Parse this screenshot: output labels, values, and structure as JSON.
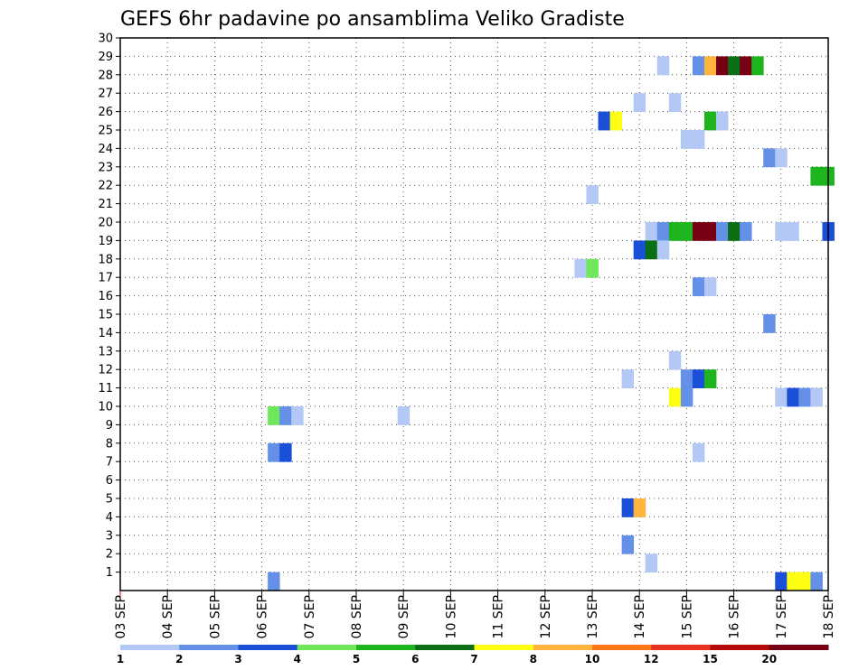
{
  "chart_data": {
    "type": "heatmap",
    "title": "GEFS 6hr padavine po ansamblima Veliko Gradiste",
    "x_ticks": [
      "03 SEP",
      "04 SEP",
      "05 SEP",
      "06 SEP",
      "07 SEP",
      "08 SEP",
      "09 SEP",
      "10 SEP",
      "11 SEP",
      "12 SEP",
      "13 SEP",
      "14 SEP",
      "15 SEP",
      "16 SEP",
      "17 SEP",
      "18 SEP"
    ],
    "x_range_days": [
      3,
      18
    ],
    "y_ticks": [
      1,
      2,
      3,
      4,
      5,
      6,
      7,
      8,
      9,
      10,
      11,
      12,
      13,
      14,
      15,
      16,
      17,
      18,
      19,
      20,
      21,
      22,
      23,
      24,
      25,
      26,
      27,
      28,
      29,
      30
    ],
    "y_range": [
      0,
      30
    ],
    "grid": true,
    "legend": {
      "position": "bottom",
      "labels": [
        "1",
        "2",
        "3",
        "4",
        "5",
        "6",
        "7",
        "8",
        "10",
        "12",
        "15",
        "20"
      ],
      "colors": [
        "#b4c8f5",
        "#6490e8",
        "#1a4fd8",
        "#6ee85a",
        "#1eb41e",
        "#0a6e14",
        "#ffff14",
        "#ffb43c",
        "#ff7814",
        "#e6321e",
        "#b40a0a",
        "#780014"
      ]
    },
    "cells": [
      {
        "member": 28,
        "x": 14.5,
        "v": 1
      },
      {
        "member": 28,
        "x": 15.25,
        "v": 2
      },
      {
        "member": 28,
        "x": 15.5,
        "v": 8
      },
      {
        "member": 28,
        "x": 15.75,
        "v": 12
      },
      {
        "member": 28,
        "x": 16.0,
        "v": 6
      },
      {
        "member": 28,
        "x": 16.25,
        "v": 12
      },
      {
        "member": 28,
        "x": 16.5,
        "v": 5
      },
      {
        "member": 26,
        "x": 14.0,
        "v": 1
      },
      {
        "member": 26,
        "x": 14.75,
        "v": 1
      },
      {
        "member": 25,
        "x": 13.25,
        "v": 3
      },
      {
        "member": 25,
        "x": 13.5,
        "v": 7
      },
      {
        "member": 25,
        "x": 15.5,
        "v": 5
      },
      {
        "member": 25,
        "x": 15.75,
        "v": 1
      },
      {
        "member": 24,
        "x": 15.0,
        "v": 1
      },
      {
        "member": 24,
        "x": 15.25,
        "v": 1
      },
      {
        "member": 23,
        "x": 16.75,
        "v": 2
      },
      {
        "member": 23,
        "x": 17.0,
        "v": 1
      },
      {
        "member": 22,
        "x": 17.75,
        "v": 5
      },
      {
        "member": 22,
        "x": 18.0,
        "v": 5
      },
      {
        "member": 21,
        "x": 13.0,
        "v": 1
      },
      {
        "member": 19,
        "x": 14.25,
        "v": 1
      },
      {
        "member": 19,
        "x": 14.5,
        "v": 2
      },
      {
        "member": 19,
        "x": 14.75,
        "v": 5
      },
      {
        "member": 19,
        "x": 15.0,
        "v": 5
      },
      {
        "member": 19,
        "x": 15.25,
        "v": 15
      },
      {
        "member": 19,
        "x": 15.5,
        "v": 15
      },
      {
        "member": 19,
        "x": 15.75,
        "v": 2
      },
      {
        "member": 19,
        "x": 16.0,
        "v": 6
      },
      {
        "member": 19,
        "x": 16.25,
        "v": 2
      },
      {
        "member": 19,
        "x": 17.0,
        "v": 1
      },
      {
        "member": 19,
        "x": 17.25,
        "v": 1
      },
      {
        "member": 19,
        "x": 18.0,
        "v": 3
      },
      {
        "member": 18,
        "x": 14.0,
        "v": 3
      },
      {
        "member": 18,
        "x": 14.25,
        "v": 6
      },
      {
        "member": 18,
        "x": 14.5,
        "v": 1
      },
      {
        "member": 17,
        "x": 12.75,
        "v": 1
      },
      {
        "member": 17,
        "x": 13.0,
        "v": 4
      },
      {
        "member": 16,
        "x": 15.25,
        "v": 2
      },
      {
        "member": 16,
        "x": 15.5,
        "v": 1
      },
      {
        "member": 14,
        "x": 16.75,
        "v": 2
      },
      {
        "member": 12,
        "x": 14.75,
        "v": 1
      },
      {
        "member": 11,
        "x": 13.75,
        "v": 1
      },
      {
        "member": 11,
        "x": 15.0,
        "v": 2
      },
      {
        "member": 11,
        "x": 15.25,
        "v": 3
      },
      {
        "member": 11,
        "x": 15.5,
        "v": 5
      },
      {
        "member": 10,
        "x": 14.75,
        "v": 7
      },
      {
        "member": 10,
        "x": 15.0,
        "v": 2
      },
      {
        "member": 10,
        "x": 17.0,
        "v": 1
      },
      {
        "member": 10,
        "x": 17.25,
        "v": 3
      },
      {
        "member": 10,
        "x": 17.5,
        "v": 2
      },
      {
        "member": 10,
        "x": 17.75,
        "v": 1
      },
      {
        "member": 9,
        "x": 6.25,
        "v": 4
      },
      {
        "member": 9,
        "x": 6.5,
        "v": 2
      },
      {
        "member": 9,
        "x": 6.75,
        "v": 1
      },
      {
        "member": 9,
        "x": 9.0,
        "v": 1
      },
      {
        "member": 7,
        "x": 6.25,
        "v": 2
      },
      {
        "member": 7,
        "x": 6.5,
        "v": 3
      },
      {
        "member": 7,
        "x": 15.25,
        "v": 1
      },
      {
        "member": 4,
        "x": 13.75,
        "v": 3
      },
      {
        "member": 4,
        "x": 14.0,
        "v": 8
      },
      {
        "member": 2,
        "x": 13.75,
        "v": 2
      },
      {
        "member": 1,
        "x": 14.25,
        "v": 1
      },
      {
        "member": 0,
        "x": 6.25,
        "v": 2
      },
      {
        "member": 0,
        "x": 17.0,
        "v": 3
      },
      {
        "member": 0,
        "x": 17.25,
        "v": 7
      },
      {
        "member": 0,
        "x": 17.5,
        "v": 7
      },
      {
        "member": 0,
        "x": 17.75,
        "v": 2
      }
    ]
  }
}
